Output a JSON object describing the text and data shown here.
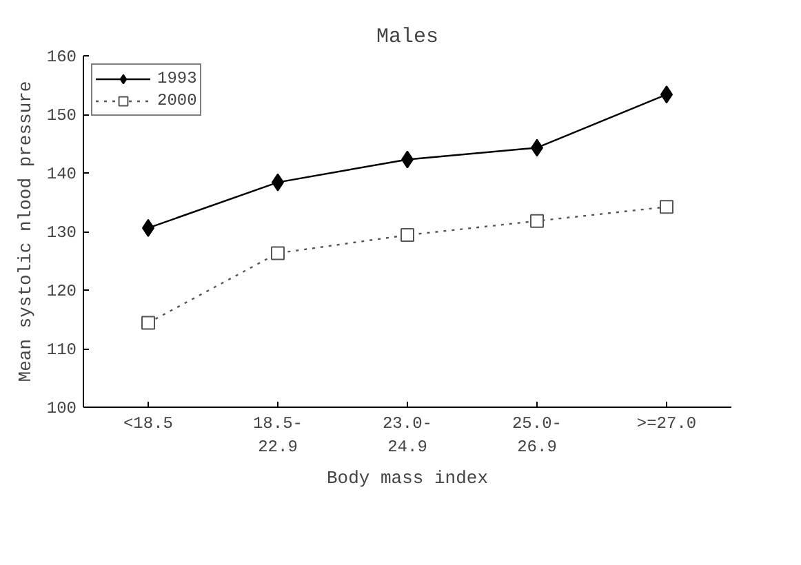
{
  "chart_data": {
    "type": "line",
    "title": "Males",
    "xlabel": "Body mass index",
    "ylabel": "Mean systolic nlood pressure",
    "categories": [
      "<18.5",
      "18.5-22.9",
      "23.0-24.9",
      "25.0-26.9",
      ">=27.0"
    ],
    "series": [
      {
        "name": "1993",
        "color": "#000000",
        "marker": "diamond",
        "line_style": "solid",
        "values": [
          130.6,
          138.4,
          142.3,
          144.3,
          153.4
        ]
      },
      {
        "name": "2000",
        "color": "#555555",
        "marker": "square",
        "line_style": "dotted",
        "values": [
          114.4,
          126.3,
          129.4,
          131.8,
          134.2
        ]
      }
    ],
    "ylim": [
      100,
      160
    ],
    "yticks": [
      100,
      110,
      120,
      130,
      140,
      150,
      160
    ],
    "grid": false,
    "legend": "top left"
  }
}
